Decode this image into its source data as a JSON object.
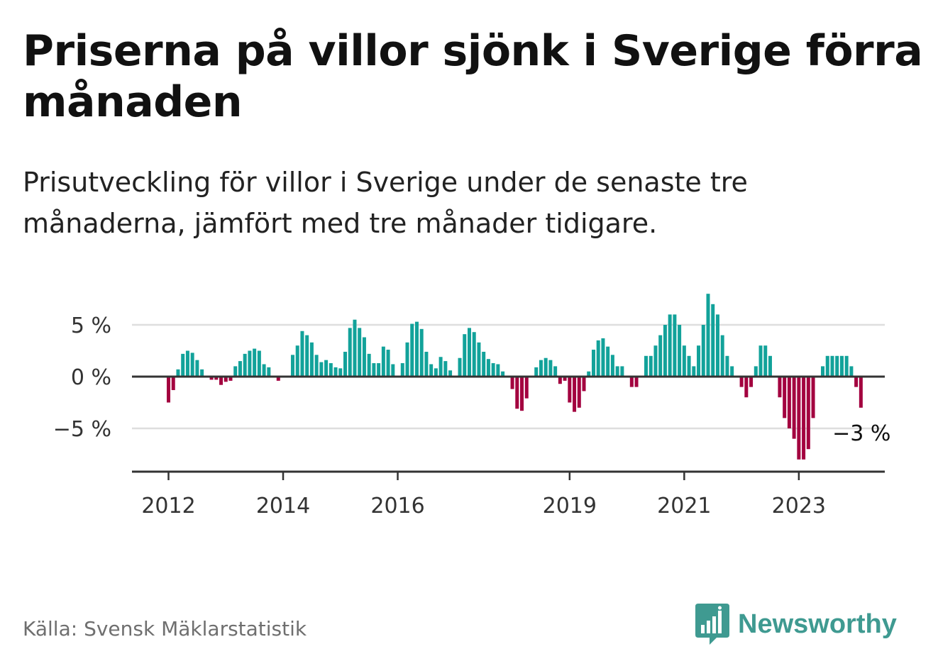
{
  "header": {
    "title": "Priserna på villor sjönk i Sverige förra månaden",
    "subtitle": "Prisutveckling för villor i Sverige under de senaste tre månaderna, jämfört med tre månader tidigare."
  },
  "footer": {
    "source": "Källa: Svensk Mäklarstatistik",
    "brand": "Newsworthy",
    "brand_icon": "bar-chart-speech-bubble-icon"
  },
  "chart_data": {
    "type": "bar",
    "unit": "%",
    "x_start": "2012-01",
    "x_ticks": [
      {
        "label": "2012",
        "date": "2012-01"
      },
      {
        "label": "2014",
        "date": "2014-01"
      },
      {
        "label": "2016",
        "date": "2016-01"
      },
      {
        "label": "2019",
        "date": "2019-01"
      },
      {
        "label": "2021",
        "date": "2021-01"
      },
      {
        "label": "2023",
        "date": "2023-01"
      }
    ],
    "y_ticks": [
      {
        "value": 5,
        "label": "5 %"
      },
      {
        "value": 0,
        "label": "0 %"
      },
      {
        "value": -5,
        "label": "−5 %"
      }
    ],
    "ylim": [
      -9,
      8
    ],
    "grid": true,
    "positive_color": "#12a29a",
    "negative_color": "#a3003f",
    "last_label": "−3 %",
    "values": [
      -2.5,
      -1.3,
      0.7,
      2.2,
      2.5,
      2.3,
      1.6,
      0.7,
      0,
      -0.3,
      -0.3,
      -0.8,
      -0.5,
      -0.4,
      1.0,
      1.5,
      2.2,
      2.5,
      2.7,
      2.5,
      1.2,
      0.9,
      0,
      -0.4,
      0,
      0,
      2.1,
      3.0,
      4.4,
      4.0,
      3.3,
      2.1,
      1.4,
      1.6,
      1.3,
      0.9,
      0.8,
      2.4,
      4.7,
      5.5,
      4.7,
      3.8,
      2.2,
      1.3,
      1.3,
      2.9,
      2.6,
      1.2,
      0,
      1.3,
      3.3,
      5.1,
      5.3,
      4.6,
      2.4,
      1.2,
      0.8,
      1.9,
      1.5,
      0.6,
      0,
      1.8,
      4.1,
      4.7,
      4.3,
      3.3,
      2.4,
      1.7,
      1.3,
      1.2,
      0.5,
      0,
      -1.2,
      -3.1,
      -3.3,
      -2.1,
      0,
      0.9,
      1.6,
      1.8,
      1.6,
      1.0,
      -0.7,
      -0.4,
      -2.5,
      -3.4,
      -3.0,
      -1.4,
      0.5,
      2.6,
      3.5,
      3.7,
      2.9,
      2.1,
      1.0,
      1.0,
      0,
      -1.0,
      -1.0,
      0,
      2.0,
      2.0,
      3.0,
      4.0,
      5.0,
      6.0,
      6.0,
      5.0,
      3.0,
      2.0,
      1.0,
      3.0,
      5.0,
      8.0,
      7.0,
      6.0,
      4.0,
      2.0,
      1.0,
      0,
      -1.0,
      -2.0,
      -1.0,
      1.0,
      3.0,
      3.0,
      2.0,
      0,
      -2.0,
      -4.0,
      -5.0,
      -6.0,
      -8.0,
      -8.0,
      -7.0,
      -4.0,
      0,
      1.0,
      2.0,
      2.0,
      2.0,
      2.0,
      2.0,
      1.0,
      -1.0,
      -3.0
    ]
  }
}
